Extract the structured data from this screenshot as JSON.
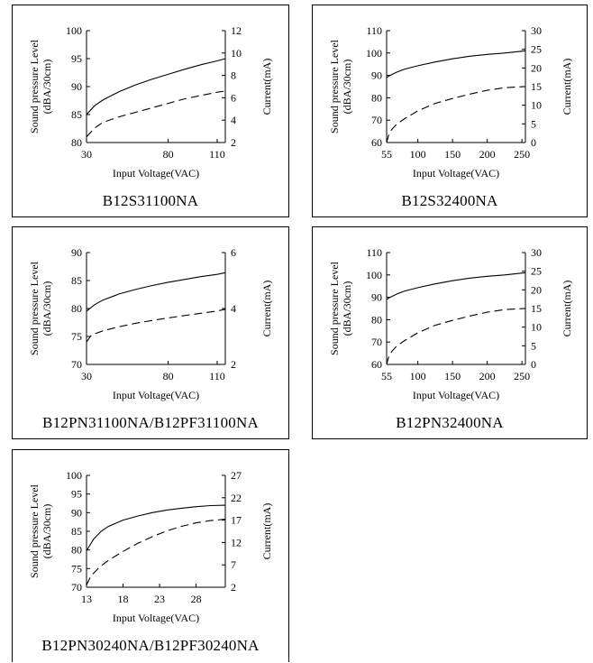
{
  "chart_data": [
    {
      "type": "line",
      "model": "B12S31100NA",
      "xlabel": "Input Voltage(VAC)",
      "ylabel_left": [
        "Sound pressure Level",
        "(dBA/30cm)"
      ],
      "ylabel_right": "Current(mA)",
      "xlim": [
        30,
        115
      ],
      "xticks": [
        30,
        80,
        110
      ],
      "ylim_left": [
        80,
        100
      ],
      "yticks_left": [
        80,
        85,
        90,
        95,
        100
      ],
      "ylim_right": [
        2,
        12
      ],
      "yticks_right": [
        2,
        4,
        6,
        8,
        10,
        12
      ],
      "series": [
        {
          "axis": "left",
          "style": "solid",
          "x": [
            30,
            35,
            40,
            50,
            60,
            70,
            80,
            90,
            100,
            110,
            115
          ],
          "y": [
            85,
            86.6,
            87.6,
            89.1,
            90.3,
            91.3,
            92.2,
            93.1,
            93.9,
            94.6,
            95
          ]
        },
        {
          "axis": "right",
          "style": "dashed",
          "x": [
            30,
            35,
            40,
            50,
            60,
            70,
            80,
            90,
            100,
            110,
            115
          ],
          "y": [
            2.5,
            3.3,
            3.8,
            4.3,
            4.7,
            5.1,
            5.5,
            5.9,
            6.2,
            6.5,
            6.6
          ]
        }
      ]
    },
    {
      "type": "line",
      "model": "B12S32400NA",
      "xlabel": "Input Voltage(VAC)",
      "ylabel_left": [
        "Sound pressure Level",
        "(dBA/30cm)"
      ],
      "ylabel_right": "Current(mA)",
      "xlim": [
        55,
        255
      ],
      "xticks": [
        55,
        100,
        150,
        200,
        250
      ],
      "ylim_left": [
        60,
        110
      ],
      "yticks_left": [
        60,
        70,
        80,
        90,
        100,
        110
      ],
      "ylim_right": [
        0,
        30
      ],
      "yticks_right": [
        0,
        5,
        10,
        15,
        20,
        25,
        30
      ],
      "series": [
        {
          "axis": "left",
          "style": "solid",
          "x": [
            55,
            60,
            70,
            80,
            100,
            125,
            150,
            175,
            200,
            225,
            255
          ],
          "y": [
            89,
            90,
            91.5,
            92.7,
            94.3,
            96,
            97.4,
            98.6,
            99.4,
            100,
            101
          ]
        },
        {
          "axis": "right",
          "style": "dashed",
          "x": [
            55,
            58,
            62,
            70,
            80,
            100,
            125,
            150,
            175,
            200,
            225,
            255
          ],
          "y": [
            0,
            2,
            3.4,
            5,
            6.3,
            8.5,
            10.5,
            11.8,
            13,
            14,
            14.7,
            15
          ]
        }
      ]
    },
    {
      "type": "line",
      "model": "B12PN31100NA/B12PF31100NA",
      "xlabel": "Input Voltage(VAC)",
      "ylabel_left": [
        "Sound pressure Level",
        "(dBA/30cm)"
      ],
      "ylabel_right": "Current(mA)",
      "xlim": [
        30,
        115
      ],
      "xticks": [
        30,
        80,
        110
      ],
      "ylim_left": [
        70,
        90
      ],
      "yticks_left": [
        70,
        75,
        80,
        85,
        90
      ],
      "ylim_right": [
        2,
        6
      ],
      "yticks_right": [
        2,
        4,
        6
      ],
      "series": [
        {
          "axis": "left",
          "style": "solid",
          "x": [
            30,
            35,
            40,
            50,
            60,
            70,
            80,
            90,
            100,
            110,
            115
          ],
          "y": [
            79.5,
            80.7,
            81.5,
            82.6,
            83.4,
            84.1,
            84.7,
            85.2,
            85.7,
            86.1,
            86.4
          ]
        },
        {
          "axis": "right",
          "style": "dashed",
          "x": [
            30,
            33,
            40,
            50,
            60,
            70,
            80,
            90,
            100,
            110,
            115
          ],
          "y": [
            2.8,
            3.05,
            3.2,
            3.35,
            3.47,
            3.57,
            3.66,
            3.75,
            3.83,
            3.91,
            3.97
          ]
        }
      ]
    },
    {
      "type": "line",
      "model": "B12PN32400NA",
      "xlabel": "Input Voltage(VAC)",
      "ylabel_left": [
        "Sound pressure Level",
        "(dBA/30cm)"
      ],
      "ylabel_right": "Current(mA)",
      "xlim": [
        55,
        255
      ],
      "xticks": [
        55,
        100,
        150,
        200,
        250
      ],
      "ylim_left": [
        60,
        110
      ],
      "yticks_left": [
        60,
        70,
        80,
        90,
        100,
        110
      ],
      "ylim_right": [
        0,
        30
      ],
      "yticks_right": [
        0,
        5,
        10,
        15,
        20,
        25,
        30
      ],
      "series": [
        {
          "axis": "left",
          "style": "solid",
          "x": [
            55,
            60,
            70,
            80,
            100,
            125,
            150,
            175,
            200,
            225,
            255
          ],
          "y": [
            89,
            90,
            91.5,
            92.7,
            94.3,
            96,
            97.4,
            98.6,
            99.4,
            100,
            101
          ]
        },
        {
          "axis": "right",
          "style": "dashed",
          "x": [
            55,
            58,
            62,
            70,
            80,
            100,
            125,
            150,
            175,
            200,
            225,
            255
          ],
          "y": [
            0,
            2,
            3.4,
            5,
            6.3,
            8.5,
            10.5,
            11.8,
            13,
            14,
            14.7,
            15
          ]
        }
      ]
    },
    {
      "type": "line",
      "model": "B12PN30240NA/B12PF30240NA",
      "xlabel": "Input Voltage(VAC)",
      "ylabel_left": [
        "Sound pressure Level",
        "(dBA/30cm)"
      ],
      "ylabel_right": "Current(mA)",
      "xlim": [
        13,
        32
      ],
      "xticks": [
        13,
        18,
        23,
        28
      ],
      "ylim_left": [
        70,
        100
      ],
      "yticks_left": [
        70,
        75,
        80,
        85,
        90,
        95,
        100
      ],
      "ylim_right": [
        2,
        27
      ],
      "yticks_right": [
        2,
        7,
        12,
        17,
        22,
        27
      ],
      "series": [
        {
          "axis": "left",
          "style": "solid",
          "x": [
            13,
            14,
            15,
            16,
            18,
            20,
            22,
            24,
            26,
            28,
            30,
            32
          ],
          "y": [
            79.8,
            83,
            85,
            86.3,
            88,
            89.1,
            90,
            90.7,
            91.2,
            91.6,
            91.9,
            92
          ]
        },
        {
          "axis": "right",
          "style": "dashed",
          "x": [
            13,
            13.5,
            14,
            15,
            16,
            18,
            20,
            22,
            24,
            26,
            28,
            30,
            32
          ],
          "y": [
            2.5,
            4.2,
            5.2,
            6.8,
            8,
            10,
            11.8,
            13.3,
            14.6,
            15.6,
            16.4,
            16.9,
            17.2
          ]
        }
      ]
    }
  ]
}
